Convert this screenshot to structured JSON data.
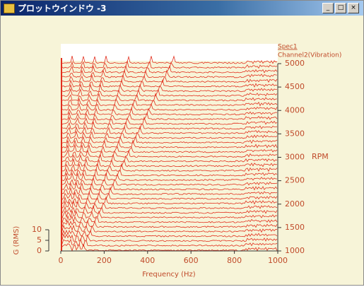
{
  "window": {
    "title": "プロットウインドウ -3"
  },
  "chart_data": {
    "type": "waterfall",
    "legend": [
      "Spec1",
      "Channel2(Vibration)"
    ],
    "x_label": "Frequency (Hz)",
    "y_label": "RPM",
    "z_label": "G (RMS)",
    "color": "#e2301e",
    "xlim": [
      0,
      1000
    ],
    "xticks": [
      0,
      200,
      400,
      600,
      800,
      1000
    ],
    "ylim": [
      1000,
      5000
    ],
    "yticks": [
      1000,
      1500,
      2000,
      2500,
      3000,
      3500,
      4000,
      4500,
      5000
    ],
    "zlim": [
      0,
      10
    ],
    "zticks": [
      0,
      5,
      10
    ],
    "traces": [
      1000,
      1100,
      1200,
      1300,
      1400,
      1500,
      1600,
      1700,
      1800,
      1900,
      2000,
      2100,
      2200,
      2300,
      2400,
      2500,
      2600,
      2700,
      2800,
      2900,
      3000,
      3100,
      3200,
      3300,
      3400,
      3500,
      3600,
      3700,
      3800,
      3900,
      4000,
      4100,
      4200,
      4300,
      4400,
      4500,
      4600,
      4700,
      4800,
      4900,
      5000
    ]
  }
}
